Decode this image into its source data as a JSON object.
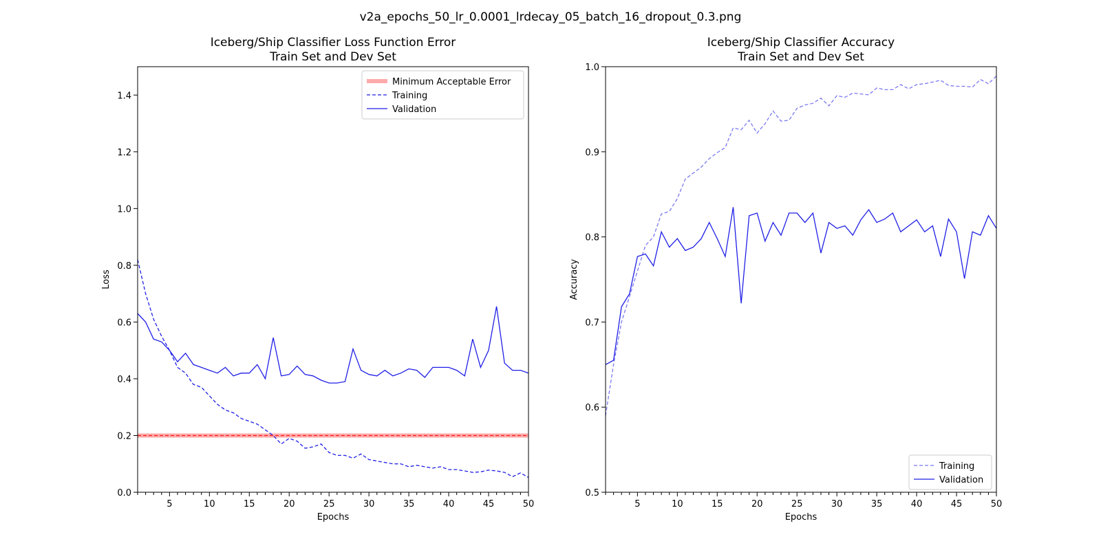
{
  "figure_title": "v2a_epochs_50_lr_0.0001_lrdecay_05_batch_16_dropout_0.3.png",
  "colors": {
    "series": "#1f1fe6",
    "threshold": "#ff0000",
    "threshold_band": "#ffaaaa"
  },
  "chart_data": [
    {
      "type": "line",
      "title": "Iceberg/Ship Classifier Loss Function Error\nTrain Set and Dev Set",
      "xlabel": "Epochs",
      "ylabel": "Loss",
      "xlim": [
        1,
        50
      ],
      "ylim": [
        0,
        1.5
      ],
      "xticks": [
        5,
        10,
        15,
        20,
        25,
        30,
        35,
        40,
        45,
        50
      ],
      "xticklabels": [
        "5",
        "10",
        "15",
        "20",
        "25",
        "30",
        "35",
        "40",
        "45",
        "50"
      ],
      "yticks": [
        0,
        0.2,
        0.4,
        0.6,
        0.8,
        1.0,
        1.2,
        1.4
      ],
      "yticklabels": [
        "0.0",
        "0.2",
        "0.4",
        "0.6",
        "0.8",
        "1.0",
        "1.2",
        "1.4"
      ],
      "grid": false,
      "legend_position": "top-right",
      "threshold": {
        "name": "Minimum Acceptable Error",
        "value": 0.2
      },
      "x": [
        1,
        2,
        3,
        4,
        5,
        6,
        7,
        8,
        9,
        10,
        11,
        12,
        13,
        14,
        15,
        16,
        17,
        18,
        19,
        20,
        21,
        22,
        23,
        24,
        25,
        26,
        27,
        28,
        29,
        30,
        31,
        32,
        33,
        34,
        35,
        36,
        37,
        38,
        39,
        40,
        41,
        42,
        43,
        44,
        45,
        46,
        47,
        48,
        49,
        50
      ],
      "series": [
        {
          "name": "Training",
          "style": "dashed",
          "values": [
            0.82,
            0.7,
            0.61,
            0.55,
            0.5,
            0.44,
            0.42,
            0.38,
            0.37,
            0.34,
            0.31,
            0.29,
            0.28,
            0.26,
            0.25,
            0.24,
            0.22,
            0.2,
            0.17,
            0.19,
            0.18,
            0.155,
            0.16,
            0.17,
            0.14,
            0.13,
            0.13,
            0.12,
            0.135,
            0.115,
            0.11,
            0.105,
            0.1,
            0.1,
            0.09,
            0.095,
            0.09,
            0.085,
            0.09,
            0.08,
            0.08,
            0.075,
            0.07,
            0.072,
            0.078,
            0.075,
            0.07,
            0.055,
            0.068,
            0.052
          ]
        },
        {
          "name": "Validation",
          "style": "solid",
          "values": [
            0.63,
            0.6,
            0.54,
            0.53,
            0.5,
            0.46,
            0.49,
            0.45,
            0.44,
            0.43,
            0.42,
            0.44,
            0.41,
            0.42,
            0.42,
            0.45,
            0.4,
            0.545,
            0.41,
            0.415,
            0.445,
            0.415,
            0.41,
            0.395,
            0.385,
            0.385,
            0.39,
            0.505,
            0.43,
            0.415,
            0.41,
            0.43,
            0.41,
            0.42,
            0.435,
            0.43,
            0.405,
            0.44,
            0.44,
            0.44,
            0.43,
            0.41,
            0.54,
            0.44,
            0.5,
            0.655,
            0.455,
            0.43,
            0.43,
            0.42
          ]
        }
      ]
    },
    {
      "type": "line",
      "title": "Iceberg/Ship Classifier Accuracy\nTrain Set and Dev Set",
      "xlabel": "Epochs",
      "ylabel": "Accuracy",
      "xlim": [
        1,
        50
      ],
      "ylim": [
        0.5,
        1.0
      ],
      "xticks": [
        5,
        10,
        15,
        20,
        25,
        30,
        35,
        40,
        45,
        50
      ],
      "xticklabels": [
        "5",
        "10",
        "15",
        "20",
        "25",
        "30",
        "35",
        "40",
        "45",
        "50"
      ],
      "yticks": [
        0.5,
        0.6,
        0.7,
        0.8,
        0.9,
        1.0
      ],
      "yticklabels": [
        "0.5",
        "0.6",
        "0.7",
        "0.8",
        "0.9",
        "1.0"
      ],
      "grid": false,
      "legend_position": "bottom-right",
      "x": [
        1,
        2,
        3,
        4,
        5,
        6,
        7,
        8,
        9,
        10,
        11,
        12,
        13,
        14,
        15,
        16,
        17,
        18,
        19,
        20,
        21,
        22,
        23,
        24,
        25,
        26,
        27,
        28,
        29,
        30,
        31,
        32,
        33,
        34,
        35,
        36,
        37,
        38,
        39,
        40,
        41,
        42,
        43,
        44,
        45,
        46,
        47,
        48,
        49,
        50
      ],
      "series": [
        {
          "name": "Training",
          "style": "dashed",
          "values": [
            0.59,
            0.65,
            0.7,
            0.73,
            0.76,
            0.79,
            0.8,
            0.827,
            0.83,
            0.845,
            0.868,
            0.875,
            0.882,
            0.892,
            0.899,
            0.905,
            0.928,
            0.926,
            0.937,
            0.922,
            0.933,
            0.948,
            0.936,
            0.937,
            0.951,
            0.955,
            0.957,
            0.963,
            0.954,
            0.966,
            0.964,
            0.969,
            0.968,
            0.967,
            0.975,
            0.973,
            0.973,
            0.979,
            0.974,
            0.979,
            0.98,
            0.982,
            0.984,
            0.978,
            0.977,
            0.977,
            0.976,
            0.985,
            0.98,
            0.989
          ]
        },
        {
          "name": "Validation",
          "style": "solid",
          "values": [
            0.65,
            0.655,
            0.718,
            0.733,
            0.777,
            0.78,
            0.766,
            0.806,
            0.788,
            0.798,
            0.784,
            0.788,
            0.798,
            0.817,
            0.798,
            0.777,
            0.835,
            0.722,
            0.825,
            0.828,
            0.795,
            0.817,
            0.802,
            0.828,
            0.828,
            0.817,
            0.828,
            0.781,
            0.817,
            0.81,
            0.813,
            0.802,
            0.82,
            0.832,
            0.817,
            0.821,
            0.828,
            0.806,
            0.813,
            0.82,
            0.806,
            0.813,
            0.777,
            0.821,
            0.806,
            0.751,
            0.806,
            0.802,
            0.825,
            0.81
          ]
        }
      ]
    }
  ]
}
